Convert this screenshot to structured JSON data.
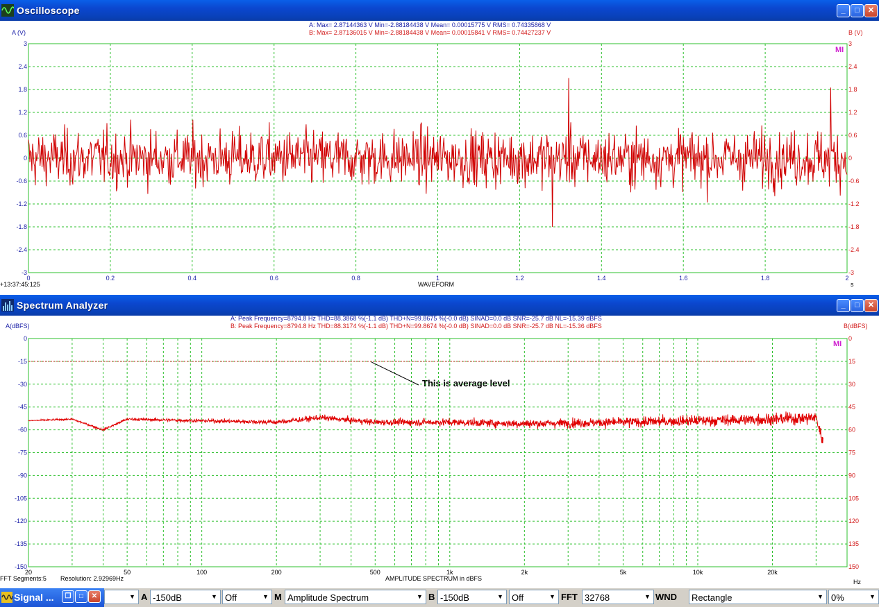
{
  "oscilloscope": {
    "title": "Oscilloscope",
    "y_left_label": "A (V)",
    "y_right_label": "B (V)",
    "stats_a": "A: Max= 2.87144363 V  Min=-2.88184438 V  Mean= 0.00015775 V  RMS= 0.74335868 V",
    "stats_b": "B: Max= 2.87136015 V  Min=-2.88184438 V  Mean= 0.00015841 V  RMS= 0.74427237 V",
    "timestamp": "+13:37:45:125",
    "x_title": "WAVEFORM",
    "x_unit": "s",
    "logo": "MI",
    "colors": {
      "grid": "#2ec02e",
      "trace_a": "#d00000",
      "trace_b": "#d00000",
      "axis_left": "#1d22a8",
      "axis_right": "#d21b1b"
    }
  },
  "spectrum": {
    "title": "Spectrum Analyzer",
    "y_left_label": "A(dBFS)",
    "y_right_label": "B(dBFS)",
    "stats_a": "A: Peak Frequency=8794.8 Hz  THD=88.3868 %(-1.1 dB)  THD+N=99.8675 %(-0.0 dB)  SINAD=0.0 dB  SNR=-25.7 dB  NL=-15.39 dBFS",
    "stats_b": "B: Peak Frequency=8794.8 Hz  THD=88.3174 %(-1.1 dB)  THD+N=99.8674 %(-0.0 dB)  SINAD=0.0 dB  SNR=-25.7 dB  NL=-15.36 dBFS",
    "fft_segments": "FFT Segments:5",
    "resolution": "Resolution: 2.92969Hz",
    "x_title": "AMPLITUDE SPECTRUM in dBFS",
    "x_unit": "Hz",
    "annotation": "This is average level",
    "logo": "MI"
  },
  "taskbar": {
    "task_label": "Signal ...",
    "a_label": "A",
    "a_range": "-150dB",
    "a_mode": "Off",
    "m_label": "M",
    "m_mode": "Amplitude Spectrum",
    "b_label": "B",
    "b_range": "-150dB",
    "b_mode": "Off",
    "fft_label": "FFT",
    "fft_size": "32768",
    "wnd_label": "WND",
    "wnd_type": "Rectangle",
    "overlap": "0%"
  },
  "chart_data": [
    {
      "type": "line",
      "title": "WAVEFORM",
      "xlabel": "s",
      "ylabel": "A (V)",
      "xlim": [
        0,
        2
      ],
      "ylim": [
        -3,
        3
      ],
      "x_ticks": [
        "0",
        "0.2",
        "0.4",
        "0.6",
        "0.8",
        "1",
        "1.2",
        "1.4",
        "1.6",
        "1.8",
        "2"
      ],
      "y_ticks": [
        "3",
        "2.4",
        "1.8",
        "1.2",
        "0.6",
        "0",
        "-0.6",
        "-1.2",
        "-1.8",
        "-2.4",
        "-3"
      ],
      "grid": true,
      "series": [
        {
          "name": "A",
          "description": "noise waveform, approx. ±1.5 V peaks, max 2.87 V",
          "x": [
            0,
            0.4,
            0.8,
            1.2,
            1.28,
            1.32,
            1.6,
            1.96,
            2
          ],
          "y": [
            0.2,
            0.8,
            -0.5,
            0.3,
            -1.8,
            2.1,
            0.4,
            1.85,
            -0.9
          ]
        }
      ]
    },
    {
      "type": "line",
      "title": "AMPLITUDE SPECTRUM in dBFS",
      "xlabel": "Hz",
      "ylabel": "A(dBFS)",
      "x_scale": "log",
      "xlim": [
        20,
        40000
      ],
      "ylim": [
        -150,
        0
      ],
      "x_ticks": [
        "20",
        "50",
        "100",
        "200",
        "500",
        "1k",
        "2k",
        "5k",
        "10k",
        "20k"
      ],
      "y_ticks": [
        "0",
        "-15",
        "-30",
        "-45",
        "-60",
        "-75",
        "-90",
        "-105",
        "-120",
        "-135",
        "-150"
      ],
      "y_ticks_right": [
        "0",
        "15",
        "30",
        "45",
        "60",
        "75",
        "90",
        "105",
        "120",
        "135",
        "150"
      ],
      "grid": true,
      "average_level": -15,
      "series": [
        {
          "name": "A",
          "x": [
            20,
            30,
            40,
            50,
            100,
            200,
            300,
            500,
            1000,
            2000,
            5000,
            10000,
            20000,
            30000,
            32000
          ],
          "y": [
            -54,
            -53,
            -60,
            -53,
            -54,
            -55,
            -52,
            -55,
            -55,
            -56,
            -55,
            -54,
            -53,
            -52,
            -68
          ]
        }
      ]
    }
  ]
}
